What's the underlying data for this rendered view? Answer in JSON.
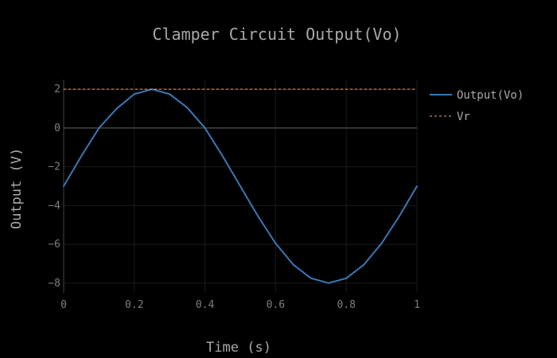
{
  "chart_data": {
    "type": "line",
    "title": "Clamper Circuit Output(Vo)",
    "xlabel": "Time (s)",
    "ylabel": "Output (V)",
    "xlim": [
      0,
      1
    ],
    "ylim": [
      -8.5,
      2.5
    ],
    "xticks": [
      0,
      0.2,
      0.4,
      0.6,
      0.8,
      1
    ],
    "xtick_labels": [
      "0",
      "0.2",
      "0.4",
      "0.6",
      "0.8",
      "1"
    ],
    "yticks": [
      2,
      0,
      -2,
      -4,
      -6,
      -8
    ],
    "ytick_labels": [
      "2",
      "0",
      "−2",
      "−4",
      "−6",
      "−8"
    ],
    "grid": true,
    "legend": "top-right",
    "series": [
      {
        "name": "Output(Vo)",
        "color": "#3a78b5",
        "style": "solid",
        "x": [
          0,
          0.05,
          0.1,
          0.15,
          0.2,
          0.25,
          0.3,
          0.35,
          0.4,
          0.45,
          0.5,
          0.55,
          0.6,
          0.65,
          0.7,
          0.75,
          0.8,
          0.85,
          0.9,
          0.95,
          1
        ],
        "y": [
          -3.0,
          -1.45,
          0.0,
          1.0,
          1.75,
          2.0,
          1.75,
          1.05,
          0.0,
          -1.45,
          -3.0,
          -4.55,
          -5.95,
          -7.05,
          -7.75,
          -8.0,
          -7.75,
          -7.05,
          -5.95,
          -4.55,
          -3.0
        ]
      },
      {
        "name": "Vr",
        "color": "#e8a37a",
        "style": "dashed",
        "x": [
          0,
          1
        ],
        "y": [
          2,
          2
        ]
      }
    ]
  }
}
